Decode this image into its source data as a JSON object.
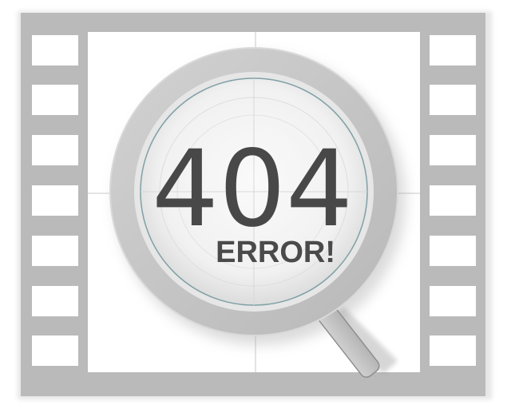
{
  "error": {
    "code": "404",
    "label": "ERROR!"
  },
  "icons": {
    "frame": "film-strip",
    "lens": "magnifying-glass"
  },
  "colors": {
    "film": "#b9b9b9",
    "film_dark": "#a8a8a8",
    "lens_ring": "#c4c4c4",
    "text": "#484848"
  }
}
